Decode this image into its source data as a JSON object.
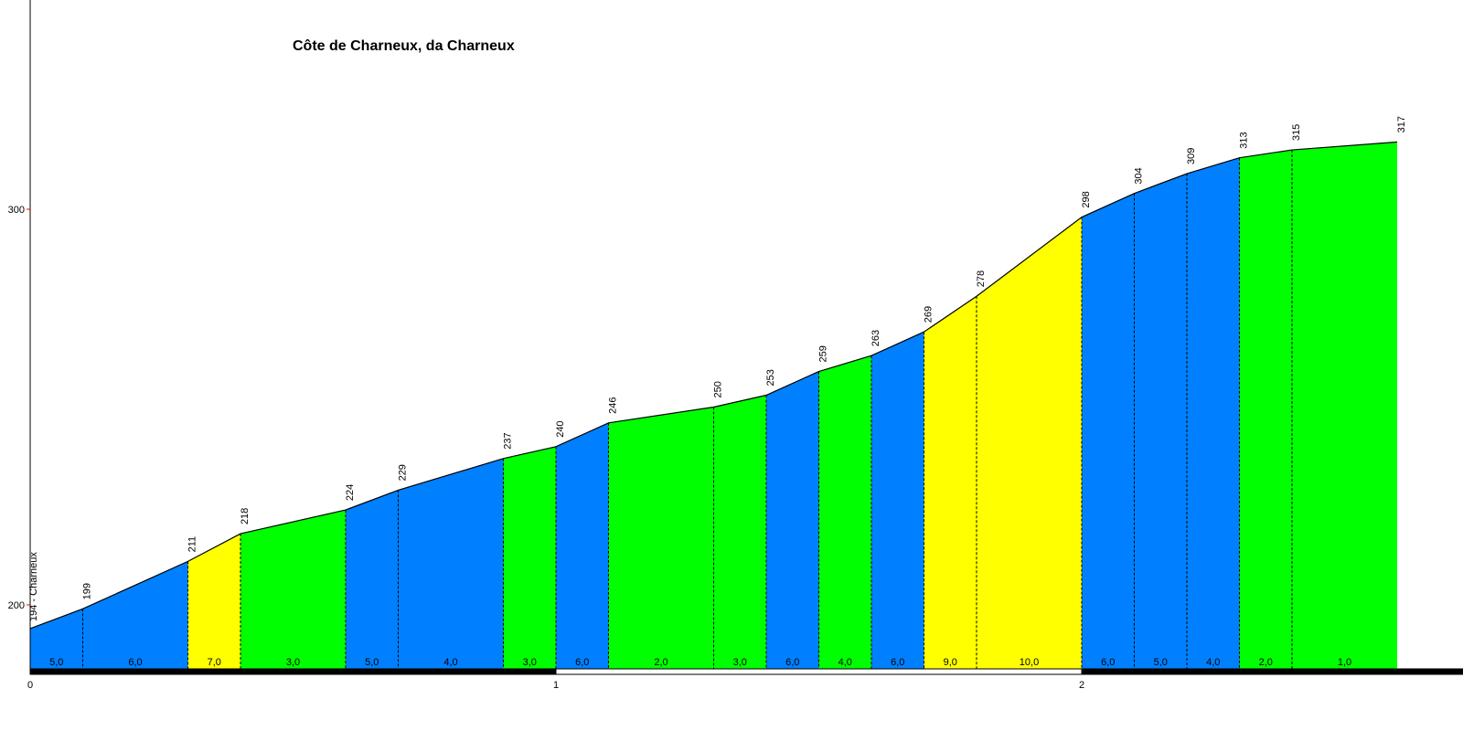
{
  "chart_data": {
    "type": "area",
    "title": "Côte de Charneux, da Charneux",
    "xlabel": "",
    "ylabel": "",
    "x_ticks": [
      "0",
      "1",
      "2"
    ],
    "y_ticks": [
      "200",
      "300"
    ],
    "xlim": [
      0,
      2.75
    ],
    "ylim": [
      184.8,
      357
    ],
    "start_label": "194 - Charneux",
    "colors": {
      "blue": "#0080ff",
      "green": "#00ff00",
      "yellow": "#ffff00"
    },
    "points": [
      {
        "x": 0.0,
        "y": 194
      },
      {
        "x": 0.1,
        "y": 199
      },
      {
        "x": 0.3,
        "y": 211
      },
      {
        "x": 0.4,
        "y": 218
      },
      {
        "x": 0.6,
        "y": 224
      },
      {
        "x": 0.7,
        "y": 229
      },
      {
        "x": 0.9,
        "y": 237
      },
      {
        "x": 1.0,
        "y": 240
      },
      {
        "x": 1.1,
        "y": 246
      },
      {
        "x": 1.3,
        "y": 250
      },
      {
        "x": 1.4,
        "y": 253
      },
      {
        "x": 1.5,
        "y": 259
      },
      {
        "x": 1.6,
        "y": 263
      },
      {
        "x": 1.7,
        "y": 269
      },
      {
        "x": 1.8,
        "y": 278
      },
      {
        "x": 2.0,
        "y": 298
      },
      {
        "x": 2.1,
        "y": 304
      },
      {
        "x": 2.2,
        "y": 309
      },
      {
        "x": 2.3,
        "y": 313
      },
      {
        "x": 2.4,
        "y": 315
      },
      {
        "x": 2.6,
        "y": 317
      }
    ],
    "point_labels": [
      "",
      "199",
      "211",
      "218",
      "224",
      "229",
      "237",
      "240",
      "246",
      "250",
      "253",
      "259",
      "263",
      "269",
      "278",
      "298",
      "304",
      "309",
      "313",
      "315",
      "317"
    ],
    "segments": [
      {
        "gradient": "5,0",
        "color": "blue"
      },
      {
        "gradient": "6,0",
        "color": "blue"
      },
      {
        "gradient": "7,0",
        "color": "yellow"
      },
      {
        "gradient": "3,0",
        "color": "green"
      },
      {
        "gradient": "5,0",
        "color": "blue"
      },
      {
        "gradient": "4,0",
        "color": "blue"
      },
      {
        "gradient": "3,0",
        "color": "green"
      },
      {
        "gradient": "6,0",
        "color": "blue"
      },
      {
        "gradient": "2,0",
        "color": "green"
      },
      {
        "gradient": "3,0",
        "color": "green"
      },
      {
        "gradient": "6,0",
        "color": "blue"
      },
      {
        "gradient": "4,0",
        "color": "green"
      },
      {
        "gradient": "6,0",
        "color": "blue"
      },
      {
        "gradient": "9,0",
        "color": "yellow"
      },
      {
        "gradient": "10,0",
        "color": "yellow"
      },
      {
        "gradient": "6,0",
        "color": "blue"
      },
      {
        "gradient": "5,0",
        "color": "blue"
      },
      {
        "gradient": "4,0",
        "color": "blue"
      },
      {
        "gradient": "2,0",
        "color": "green"
      },
      {
        "gradient": "1,0",
        "color": "green"
      }
    ]
  }
}
